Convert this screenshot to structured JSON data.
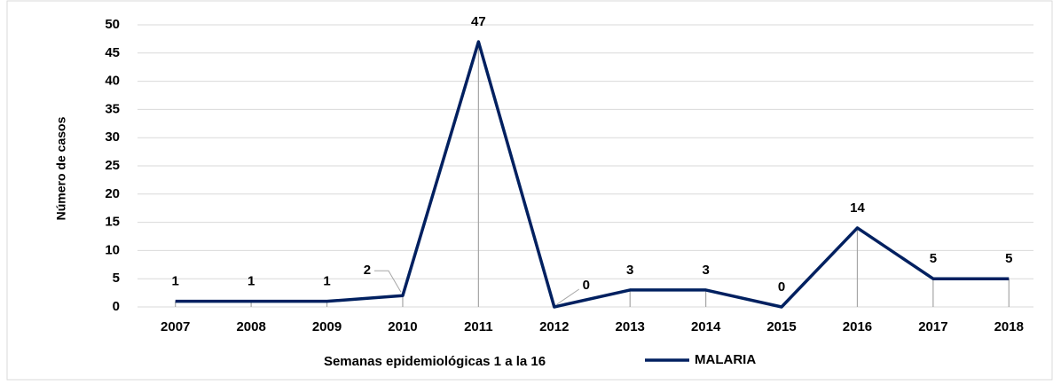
{
  "chart_data": {
    "type": "line",
    "categories": [
      "2007",
      "2008",
      "2009",
      "2010",
      "2011",
      "2012",
      "2013",
      "2014",
      "2015",
      "2016",
      "2017",
      "2018"
    ],
    "series": [
      {
        "name": "MALARIA",
        "color": "#002060",
        "values": [
          1,
          1,
          1,
          2,
          47,
          0,
          3,
          3,
          0,
          14,
          5,
          5
        ]
      }
    ],
    "ylim": [
      0,
      50
    ],
    "yticks": [
      0,
      5,
      10,
      15,
      20,
      25,
      30,
      35,
      40,
      45,
      50
    ],
    "grid": true,
    "xlabel": "Semanas epidemiológicas 1 a la 16",
    "ylabel": "Número de casos"
  }
}
